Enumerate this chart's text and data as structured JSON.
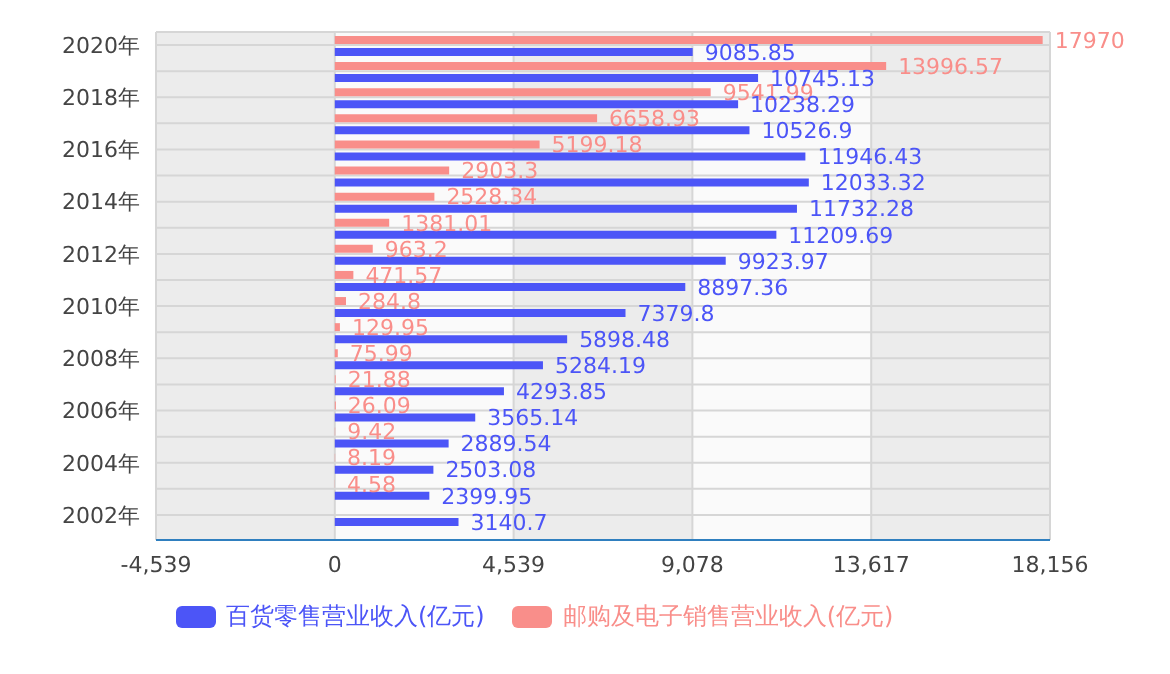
{
  "chart_data": {
    "type": "bar",
    "orientation": "horizontal",
    "categories": [
      "2020年",
      null,
      "2018年",
      null,
      "2016年",
      null,
      "2014年",
      null,
      "2012年",
      null,
      "2010年",
      null,
      "2008年",
      null,
      "2006年",
      null,
      "2004年",
      null,
      "2002年"
    ],
    "series": [
      {
        "name": "百货零售营业收入(亿元)",
        "color": "#4c55f7",
        "values": [
          9085.85,
          10745.13,
          10238.29,
          10526.9,
          11946.43,
          12033.32,
          11732.28,
          11209.69,
          9923.97,
          8897.36,
          7379.8,
          5898.48,
          5284.19,
          4293.85,
          3565.14,
          2889.54,
          2503.08,
          2399.95,
          3140.7
        ]
      },
      {
        "name": "邮购及电子销售营业收入(亿元)",
        "color": "#f98e8a",
        "values": [
          17970,
          13996.57,
          9541.99,
          6658.93,
          5199.18,
          2903.3,
          2528.34,
          1381.01,
          963.2,
          471.57,
          284.8,
          129.95,
          75.99,
          21.88,
          26.09,
          9.42,
          8.19,
          4.58,
          null
        ]
      }
    ],
    "xlim": [
      -4539,
      18156
    ],
    "xticks": [
      {
        "value": -4539,
        "label": "-4,539"
      },
      0,
      {
        "value": 4539,
        "label": "4,539"
      },
      {
        "value": 9078,
        "label": "9,078"
      },
      {
        "value": 13617,
        "label": "13,617"
      },
      {
        "value": 18156,
        "label": "18,156"
      }
    ],
    "grid": true,
    "legend": "bottom",
    "data_labels": true
  }
}
